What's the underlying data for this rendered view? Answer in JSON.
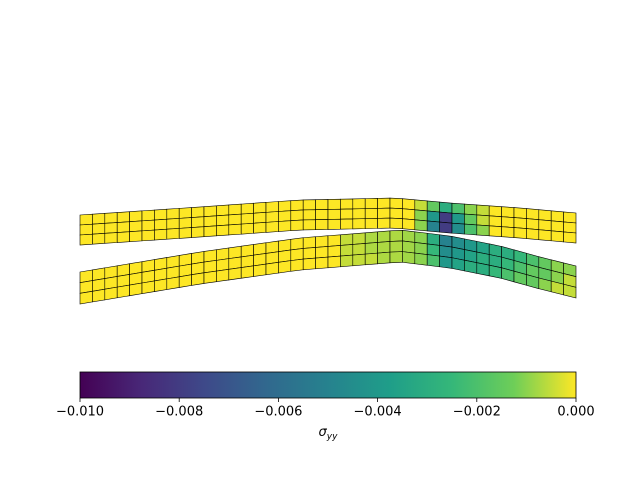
{
  "chart_data": {
    "type": "mesh",
    "beams": [
      {
        "values": [
          [
            0,
            0,
            0,
            0,
            0,
            0,
            0,
            0,
            0,
            0,
            0,
            0,
            0,
            0,
            0,
            0,
            0,
            0,
            0,
            0,
            0,
            0,
            0,
            0,
            0,
            0,
            0,
            -0.0005,
            -0.0015,
            -0.003,
            -0.002,
            -0.001,
            -0.0005,
            0,
            0,
            0,
            0,
            0,
            0,
            0
          ],
          [
            0,
            0,
            0,
            0,
            0,
            0,
            0,
            0,
            0,
            0,
            0,
            0,
            0,
            0,
            0,
            0,
            0,
            0,
            0,
            0,
            0,
            0,
            0,
            0,
            0,
            0,
            0,
            -0.001,
            -0.004,
            -0.008,
            -0.004,
            -0.0015,
            -0.0005,
            0,
            0,
            0,
            0,
            0,
            0,
            0
          ],
          [
            0,
            0,
            0,
            0,
            0,
            0,
            0,
            0,
            0,
            0,
            0,
            0,
            0,
            0,
            0,
            0,
            0,
            0,
            0,
            0,
            0,
            0,
            0,
            0,
            0,
            0,
            0,
            -0.001,
            -0.005,
            -0.008,
            -0.0045,
            -0.002,
            -0.001,
            0,
            0,
            0,
            0,
            0,
            0,
            0
          ]
        ]
      },
      {
        "values": [
          [
            0,
            0,
            0,
            0,
            0,
            0,
            0,
            0,
            0,
            0,
            0,
            0,
            0,
            0,
            0,
            0,
            0,
            0,
            0,
            0,
            0,
            -0.0005,
            -0.0005,
            -0.0007,
            -0.0007,
            -0.0007,
            -0.0008,
            -0.001,
            -0.003,
            -0.005,
            -0.0045,
            -0.004,
            -0.0035,
            -0.003,
            -0.003,
            -0.0025,
            -0.002,
            -0.0015,
            -0.001,
            -0.001
          ],
          [
            0,
            0,
            0,
            0,
            0,
            0,
            0,
            0,
            0,
            0,
            0,
            0,
            0,
            0,
            0,
            0,
            0,
            0,
            0,
            0,
            0,
            -0.0005,
            -0.0005,
            -0.0007,
            -0.0007,
            -0.0007,
            -0.0008,
            -0.001,
            -0.0025,
            -0.0045,
            -0.004,
            -0.0035,
            -0.003,
            -0.003,
            -0.0025,
            -0.002,
            -0.0015,
            -0.0015,
            -0.001,
            -0.0005
          ],
          [
            0,
            0,
            0,
            0,
            0,
            0,
            0,
            0,
            0,
            0,
            0,
            0,
            0,
            0,
            0,
            0,
            0,
            0,
            0,
            0,
            0,
            -0.0005,
            -0.0005,
            -0.0005,
            -0.0007,
            -0.0007,
            -0.0008,
            -0.001,
            -0.002,
            -0.004,
            -0.0035,
            -0.003,
            -0.003,
            -0.0025,
            -0.002,
            -0.0015,
            -0.0015,
            -0.001,
            -0.0005,
            -0.0005
          ]
        ]
      }
    ],
    "colormap": "viridis",
    "clim": [
      -0.01,
      0
    ],
    "cticks": [
      {
        "value": -0.01,
        "label": "−0.010"
      },
      {
        "value": -0.008,
        "label": "−0.008"
      },
      {
        "value": -0.006,
        "label": "−0.006"
      },
      {
        "value": -0.004,
        "label": "−0.004"
      },
      {
        "value": -0.002,
        "label": "−0.002"
      },
      {
        "value": 0,
        "label": "0.000"
      }
    ],
    "clabel": {
      "symbol": "σ",
      "subscript": "yy"
    }
  }
}
